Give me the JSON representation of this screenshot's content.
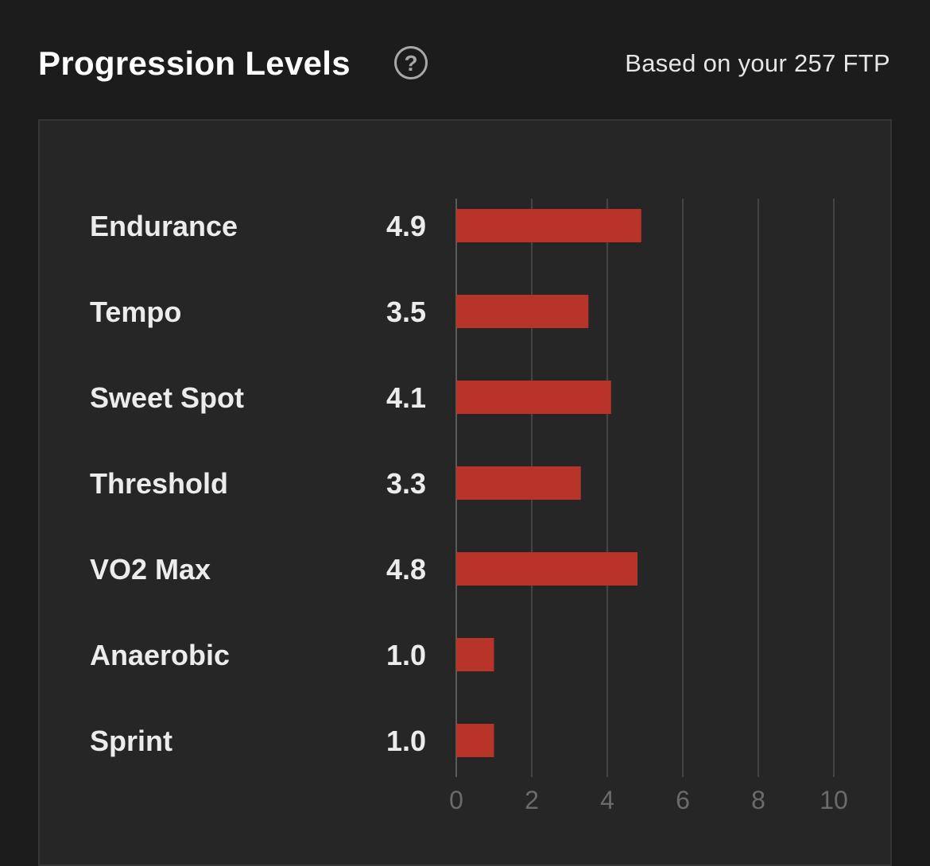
{
  "header": {
    "title": "Progression Levels",
    "help_icon": "question-circle-icon",
    "subtitle": "Based on your 257 FTP"
  },
  "colors": {
    "bar": "#b83428",
    "grid": "#444444",
    "panel": "#262626",
    "background": "#1c1c1c"
  },
  "chart_data": {
    "type": "bar",
    "orientation": "horizontal",
    "categories": [
      "Endurance",
      "Tempo",
      "Sweet Spot",
      "Threshold",
      "VO2 Max",
      "Anaerobic",
      "Sprint"
    ],
    "values": [
      4.9,
      3.5,
      4.1,
      3.3,
      4.8,
      1.0,
      1.0
    ],
    "value_labels": [
      "4.9",
      "3.5",
      "4.1",
      "3.3",
      "4.8",
      "1.0",
      "1.0"
    ],
    "xlim": [
      0,
      10
    ],
    "xticks": [
      0,
      2,
      4,
      6,
      8,
      10
    ],
    "grid": true,
    "title": "",
    "xlabel": "",
    "ylabel": ""
  }
}
